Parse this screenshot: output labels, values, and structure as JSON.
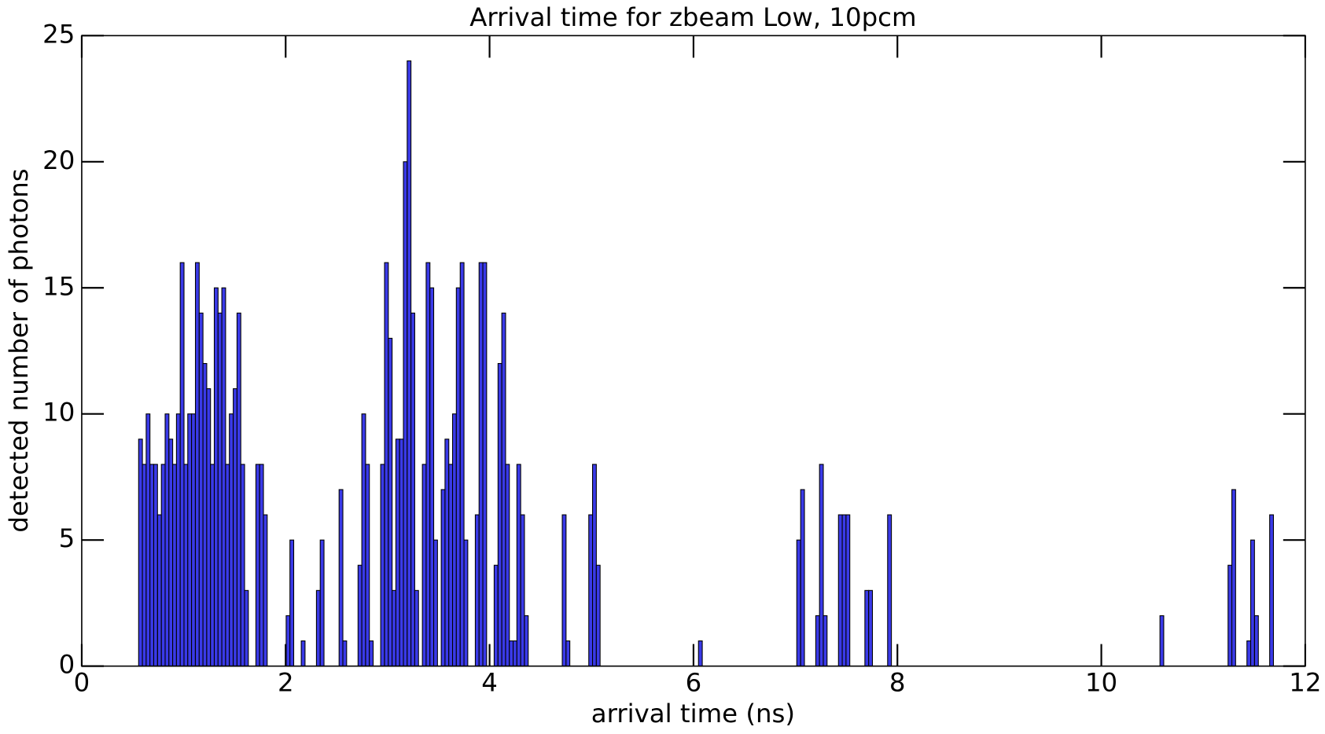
{
  "chart_data": {
    "type": "histogram",
    "title": "Arrival time for zbeam Low, 10pcm",
    "xlabel": "arrival time (ns)",
    "ylabel": "detected number of photons",
    "bin_width": 0.0371,
    "x": [
      0.558,
      0.595,
      0.632,
      0.669,
      0.706,
      0.744,
      0.781,
      0.818,
      0.855,
      0.892,
      0.929,
      0.966,
      1.003,
      1.04,
      1.077,
      1.115,
      1.152,
      1.189,
      1.226,
      1.263,
      1.3,
      1.337,
      1.374,
      1.411,
      1.448,
      1.486,
      1.523,
      1.56,
      1.597,
      1.708,
      1.745,
      1.782,
      2.005,
      2.042,
      2.153,
      2.302,
      2.339,
      2.524,
      2.561,
      2.71,
      2.747,
      2.784,
      2.821,
      2.932,
      2.97,
      3.007,
      3.044,
      3.081,
      3.118,
      3.155,
      3.192,
      3.229,
      3.266,
      3.341,
      3.378,
      3.415,
      3.452,
      3.526,
      3.563,
      3.6,
      3.637,
      3.674,
      3.712,
      3.749,
      3.86,
      3.897,
      3.934,
      4.045,
      4.083,
      4.12,
      4.157,
      4.194,
      4.231,
      4.268,
      4.305,
      4.342,
      4.713,
      4.75,
      4.973,
      5.01,
      5.047,
      6.049,
      7.013,
      7.051,
      7.199,
      7.236,
      7.273,
      7.422,
      7.459,
      7.496,
      7.681,
      7.718,
      7.904,
      10.575,
      11.243,
      11.28,
      11.428,
      11.465,
      11.503,
      11.651
    ],
    "values": [
      9,
      8,
      10,
      8,
      8,
      6,
      8,
      10,
      9,
      8,
      10,
      16,
      8,
      10,
      10,
      16,
      14,
      12,
      11,
      8,
      15,
      14,
      15,
      8,
      10,
      11,
      14,
      8,
      3,
      8,
      8,
      6,
      2,
      5,
      1,
      3,
      5,
      7,
      1,
      4,
      10,
      8,
      1,
      8,
      16,
      13,
      3,
      9,
      9,
      20,
      24,
      14,
      3,
      8,
      16,
      15,
      5,
      7,
      9,
      8,
      10,
      15,
      16,
      5,
      6,
      16,
      16,
      4,
      12,
      14,
      8,
      1,
      1,
      8,
      6,
      2,
      6,
      1,
      6,
      8,
      4,
      1,
      5,
      7,
      2,
      8,
      2,
      6,
      6,
      6,
      3,
      3,
      6,
      2,
      4,
      7,
      1,
      5,
      2,
      6
    ],
    "color": "#3a3ae8",
    "xlim": [
      0,
      12
    ],
    "xticks": [
      0,
      2,
      4,
      6,
      8,
      10,
      12
    ],
    "ylim": [
      0,
      25
    ],
    "yticks": [
      0,
      5,
      10,
      15,
      20,
      25
    ]
  }
}
